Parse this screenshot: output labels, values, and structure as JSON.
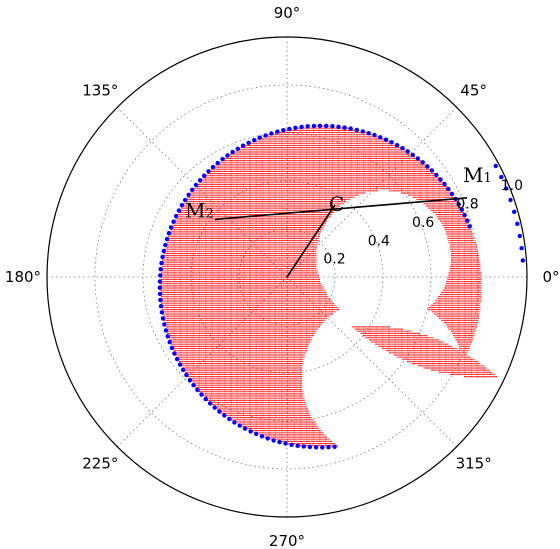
{
  "chart_data": {
    "type": "scatter",
    "projection": "polar",
    "title": "",
    "angle_ticks": [
      {
        "deg": 0,
        "label": "0°"
      },
      {
        "deg": 45,
        "label": "45°"
      },
      {
        "deg": 90,
        "label": "90°"
      },
      {
        "deg": 135,
        "label": "135°"
      },
      {
        "deg": 180,
        "label": "180°"
      },
      {
        "deg": 225,
        "label": "225°"
      },
      {
        "deg": 270,
        "label": "270°"
      },
      {
        "deg": 315,
        "label": "315°"
      }
    ],
    "radial_ticks": [
      {
        "r": 0.2,
        "label": "0.2"
      },
      {
        "r": 0.4,
        "label": "0.4"
      },
      {
        "r": 0.6,
        "label": "0.6"
      },
      {
        "r": 0.8,
        "label": "0.8"
      },
      {
        "r": 1.0,
        "label": "1.0"
      }
    ],
    "rlim": [
      0,
      1.0
    ],
    "grid": true,
    "colors": {
      "fill": "#ff0000",
      "boundary": "#0000ff",
      "lines": "#000000",
      "grid": "#777777"
    },
    "annotations": {
      "C": {
        "label": "C",
        "x": 0.2,
        "y": 0.3
      },
      "M1": {
        "label": "M",
        "subscript": "1",
        "x": 0.75,
        "y": 0.33
      },
      "M2": {
        "label": "M",
        "subscript": "2",
        "x": -0.3,
        "y": 0.24
      }
    },
    "series": [
      {
        "kind": "red_region",
        "big_disk": {
          "cx": 0.14,
          "cy": -0.04,
          "r": 0.67
        },
        "excluded_upper": {
          "cx": 0.4,
          "cy": 0.08,
          "r": 0.28
        },
        "excluded_lower": {
          "cx": 0.4,
          "cy": -0.42,
          "r": 0.34
        },
        "lens": {
          "a": [
            0.26,
            -0.2
          ],
          "b": [
            0.88,
            -0.42
          ]
        }
      },
      {
        "kind": "blue_boundary"
      }
    ]
  }
}
